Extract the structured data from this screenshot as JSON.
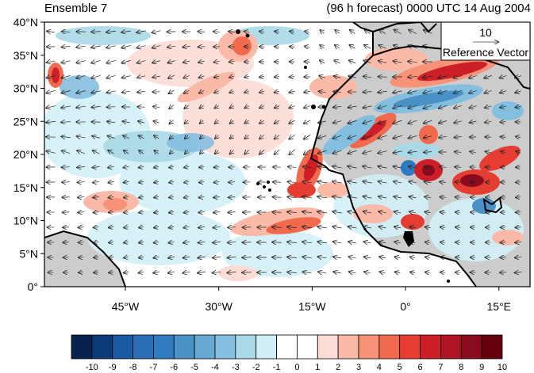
{
  "header": {
    "left_title": "Ensemble 7",
    "right_title": "(96 h forecast) 0000 UTC 14 Aug 2004"
  },
  "map": {
    "lon_range": [
      -58,
      20
    ],
    "lat_range": [
      0,
      40
    ],
    "y_ticks": [
      "0°",
      "5°N",
      "10°N",
      "15°N",
      "20°N",
      "25°N",
      "30°N",
      "35°N",
      "40°N"
    ],
    "x_ticks": [
      "45°W",
      "30°W",
      "15°W",
      "0°",
      "15°E"
    ],
    "x_tick_lons": [
      -45,
      -30,
      -15,
      0,
      15
    ],
    "land_color": "#cccccc",
    "coast_color": "#000000"
  },
  "reference_vector": {
    "value": "10",
    "label": "Reference Vector"
  },
  "colorbar": {
    "labels": [
      "-10",
      "-9",
      "-8",
      "-7",
      "-6",
      "-5",
      "-4",
      "-3",
      "-2",
      "-1",
      "0",
      "1",
      "2",
      "3",
      "4",
      "5",
      "6",
      "7",
      "8",
      "9",
      "10"
    ],
    "colors": [
      "#08214f",
      "#0a3a78",
      "#185ba4",
      "#2a6fb6",
      "#2f7bbf",
      "#4a91c8",
      "#66a9d3",
      "#85bfdf",
      "#a9d8e6",
      "#d2eff6",
      "#ffffff",
      "#ffffff",
      "#fddcd6",
      "#fbb9a7",
      "#f79278",
      "#f26a4d",
      "#e63d32",
      "#cd1f27",
      "#ae1424",
      "#8a0a1e",
      "#67000d"
    ]
  }
}
